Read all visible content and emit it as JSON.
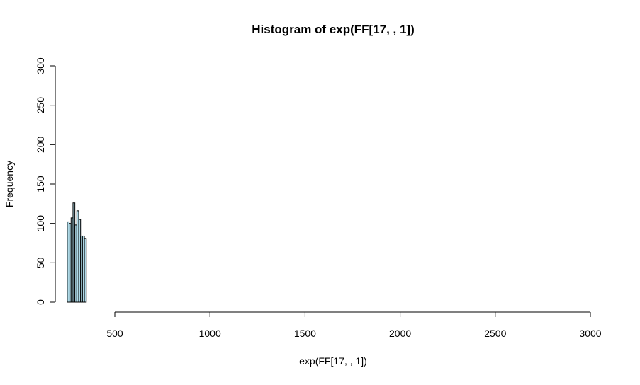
{
  "chart_data": {
    "type": "bar",
    "title": "Histogram of exp(FF[17, , 1])",
    "xlabel": "exp(FF[17, , 1])",
    "ylabel": "Frequency",
    "xlim": [
      180,
      3000
    ],
    "ylim": [
      0,
      300
    ],
    "xaxis_ticks": [
      500,
      1000,
      1500,
      2000,
      2500,
      3000
    ],
    "xaxis_tick_labels": [
      "500",
      "1000",
      "1500",
      "2000",
      "2500",
      "3000"
    ],
    "yaxis_ticks": [
      0,
      50,
      100,
      150,
      200,
      250,
      300
    ],
    "yaxis_tick_labels": [
      "0",
      "50",
      "100",
      "150",
      "200",
      "250",
      "300"
    ],
    "bins": [
      {
        "start": 250,
        "end": 260,
        "count": 102
      },
      {
        "start": 260,
        "end": 270,
        "count": 100
      },
      {
        "start": 270,
        "end": 280,
        "count": 107
      },
      {
        "start": 280,
        "end": 290,
        "count": 126
      },
      {
        "start": 290,
        "end": 300,
        "count": 98
      },
      {
        "start": 300,
        "end": 310,
        "count": 116
      },
      {
        "start": 310,
        "end": 320,
        "count": 105
      },
      {
        "start": 320,
        "end": 330,
        "count": 84
      },
      {
        "start": 330,
        "end": 340,
        "count": 84
      },
      {
        "start": 340,
        "end": 350,
        "count": 81
      }
    ],
    "bar_fill": "#ADD8E6",
    "bar_stroke": "#000000",
    "grid": false,
    "legend": "none"
  }
}
